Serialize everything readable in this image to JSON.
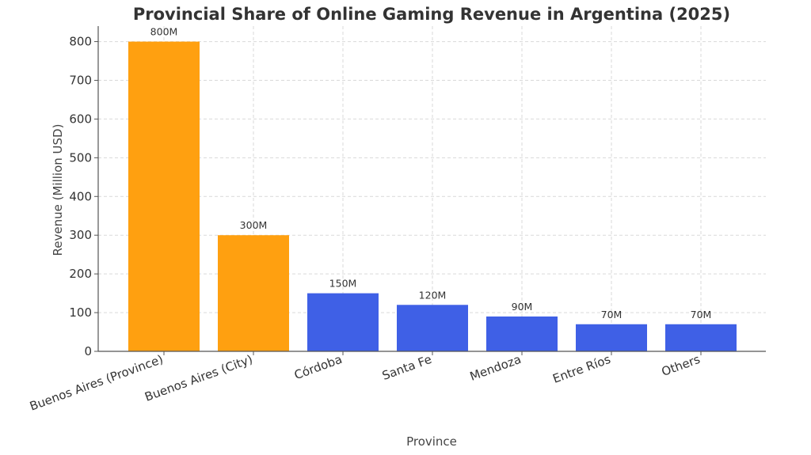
{
  "chart_data": {
    "type": "bar",
    "title": "Provincial Share of Online Gaming Revenue in Argentina (2025)",
    "xlabel": "Province",
    "ylabel": "Revenue (Million USD)",
    "categories": [
      "Buenos Aires (Province)",
      "Buenos Aires (City)",
      "Córdoba",
      "Santa Fe",
      "Mendoza",
      "Entre Ríos",
      "Others"
    ],
    "values": [
      800,
      300,
      150,
      120,
      90,
      70,
      70
    ],
    "data_labels": [
      "800M",
      "300M",
      "150M",
      "120M",
      "90M",
      "70M",
      "70M"
    ],
    "colors": [
      "#FFA010",
      "#FFA010",
      "#3F60E6",
      "#3F60E6",
      "#3F60E6",
      "#3F60E6",
      "#3F60E6"
    ],
    "ylim": [
      0,
      840
    ],
    "yticks": [
      0,
      100,
      200,
      300,
      400,
      500,
      600,
      700,
      800
    ],
    "grid": true,
    "legend": "none"
  }
}
